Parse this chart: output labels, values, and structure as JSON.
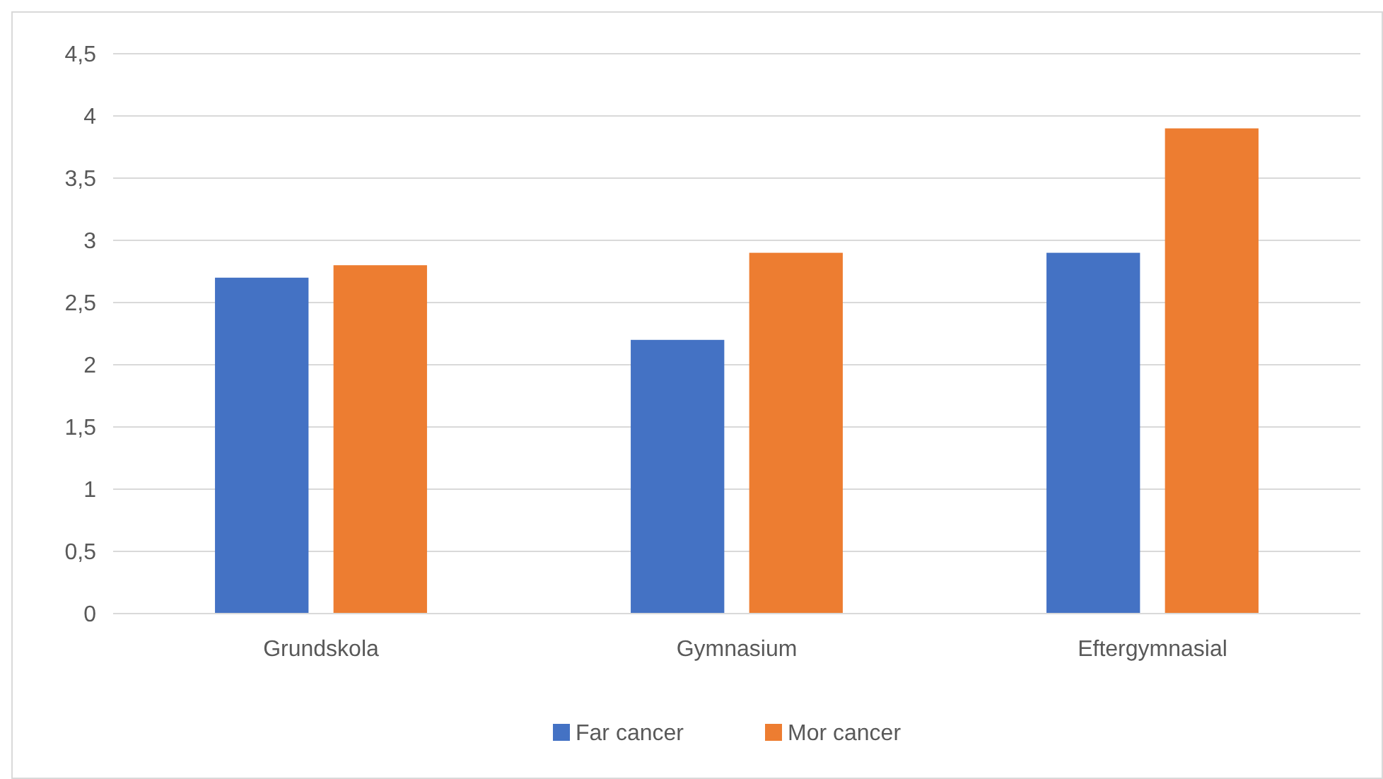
{
  "chart_data": {
    "type": "bar",
    "categories": [
      "Grundskola",
      "Gymnasium",
      "Eftergymnasial"
    ],
    "series": [
      {
        "name": "Far cancer",
        "color": "#4472c4",
        "values": [
          2.7,
          2.2,
          2.9
        ]
      },
      {
        "name": "Mor cancer",
        "color": "#ed7d31",
        "values": [
          2.8,
          2.9,
          3.9
        ]
      }
    ],
    "ylim": [
      0,
      4.5
    ],
    "yticks": [
      0,
      {
        "value": 0.5,
        "label": "0,5"
      },
      1,
      {
        "value": 1.5,
        "label": "1,5"
      },
      2,
      {
        "value": 2.5,
        "label": "2,5"
      },
      3,
      {
        "value": 3.5,
        "label": "3,5"
      },
      4,
      {
        "value": 4.5,
        "label": "4,5"
      }
    ],
    "grid": "y",
    "legend": "bottom"
  }
}
